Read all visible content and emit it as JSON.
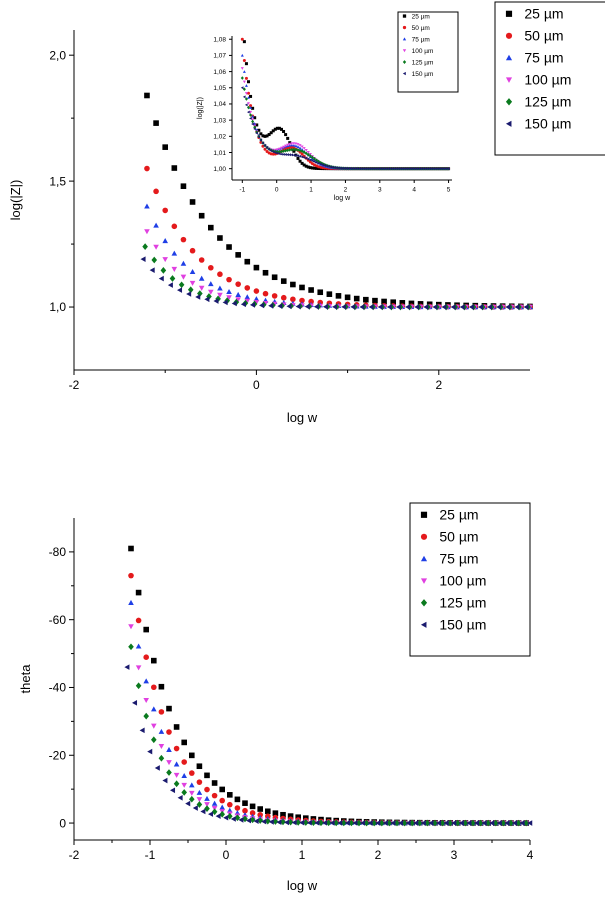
{
  "chart_data": [
    {
      "type": "scatter",
      "id": "top-main",
      "title": "",
      "xlabel": "log w",
      "ylabel": "log(|Z|)",
      "xlim": [
        -2,
        3
      ],
      "ylim": [
        0.75,
        2.1
      ],
      "xticks": [
        {
          "v": -2,
          "label": "-2"
        },
        {
          "v": 0,
          "label": "0"
        },
        {
          "v": 2,
          "label": "2"
        }
      ],
      "yticks": [
        {
          "v": 1.0,
          "label": "1,0"
        },
        {
          "v": 1.5,
          "label": "1,5"
        },
        {
          "v": 2.0,
          "label": "2,0"
        }
      ],
      "legend_placement": "top-right (outside)",
      "grid": false,
      "curve_model": {
        "x_start": -1.2,
        "x_end": 3.0,
        "step": 0.1,
        "y_inf": 1.0
      },
      "series": [
        {
          "name": "25 µm",
          "marker": "square",
          "color": "#000000",
          "start": 1.84,
          "k": 1.4,
          "x_start": -1.2
        },
        {
          "name": "50 µm",
          "marker": "circle",
          "color": "#e41a1c",
          "start": 1.55,
          "k": 1.8,
          "x_start": -1.2
        },
        {
          "name": "75 µm",
          "marker": "triangle-up",
          "color": "#1f3fe6",
          "start": 1.4,
          "k": 2.1,
          "x_start": -1.2
        },
        {
          "name": "100 µm",
          "marker": "triangle-down",
          "color": "#e040e0",
          "start": 1.3,
          "k": 2.3,
          "x_start": -1.2
        },
        {
          "name": "125 µm",
          "marker": "diamond",
          "color": "#0a7a1e",
          "start": 1.24,
          "k": 2.5,
          "x_start": -1.22
        },
        {
          "name": "150 µm",
          "marker": "triangle-left",
          "color": "#1a1a6e",
          "start": 1.19,
          "k": 2.6,
          "x_start": -1.24
        }
      ]
    },
    {
      "type": "scatter",
      "id": "top-inset",
      "title": "",
      "xlabel": "log w",
      "ylabel": "log(|Z|)",
      "xlim": [
        -1.3,
        5.1
      ],
      "ylim": [
        0.993,
        1.082
      ],
      "xticks": [
        {
          "v": -1,
          "label": "-1"
        },
        {
          "v": 0,
          "label": "0"
        },
        {
          "v": 1,
          "label": "1"
        },
        {
          "v": 2,
          "label": "2"
        },
        {
          "v": 3,
          "label": "3"
        },
        {
          "v": 4,
          "label": "4"
        },
        {
          "v": 5,
          "label": "5"
        }
      ],
      "yticks": [
        {
          "v": 1.0,
          "label": "1,00"
        },
        {
          "v": 1.01,
          "label": "1,01"
        },
        {
          "v": 1.02,
          "label": "1,02"
        },
        {
          "v": 1.03,
          "label": "1,03"
        },
        {
          "v": 1.04,
          "label": "1,04"
        },
        {
          "v": 1.05,
          "label": "1,05"
        },
        {
          "v": 1.06,
          "label": "1,06"
        },
        {
          "v": 1.07,
          "label": "1,07"
        },
        {
          "v": 1.08,
          "label": "1,08"
        }
      ],
      "legend_placement": "top-right",
      "grid": false,
      "curve_model": {
        "x_start": -1.0,
        "x_end": 5.0,
        "step": 0.06,
        "y_inf": 1.0
      },
      "series": [
        {
          "name": "25 µm",
          "marker": "square",
          "color": "#000000",
          "start": 1.095,
          "k": 3.2,
          "hump": 0.022,
          "hump_c": 0.1,
          "hump_w": 0.45
        },
        {
          "name": "50 µm",
          "marker": "circle",
          "color": "#e41a1c",
          "start": 1.08,
          "k": 3.0,
          "hump": 0.012,
          "hump_c": 0.45,
          "hump_w": 0.5
        },
        {
          "name": "75 µm",
          "marker": "triangle-up",
          "color": "#1f3fe6",
          "start": 1.07,
          "k": 2.6,
          "hump": 0.013,
          "hump_c": 0.5,
          "hump_w": 0.6
        },
        {
          "name": "100 µm",
          "marker": "triangle-down",
          "color": "#e040e0",
          "start": 1.062,
          "k": 2.4,
          "hump": 0.014,
          "hump_c": 0.55,
          "hump_w": 0.6
        },
        {
          "name": "125 µm",
          "marker": "diamond",
          "color": "#0a7a1e",
          "start": 1.056,
          "k": 2.2,
          "hump": 0.01,
          "hump_c": 0.6,
          "hump_w": 0.65
        },
        {
          "name": "150 µm",
          "marker": "triangle-left",
          "color": "#1a1a6e",
          "start": 1.05,
          "k": 2.0,
          "hump": 0.006,
          "hump_c": 0.6,
          "hump_w": 0.7
        }
      ]
    },
    {
      "type": "scatter",
      "id": "bottom",
      "title": "",
      "xlabel": "log w",
      "ylabel": "theta",
      "xlim": [
        -2,
        4
      ],
      "ylim": [
        5,
        -90
      ],
      "xticks": [
        {
          "v": -2,
          "label": "-2"
        },
        {
          "v": -1,
          "label": "-1"
        },
        {
          "v": 0,
          "label": "0"
        },
        {
          "v": 1,
          "label": "1"
        },
        {
          "v": 2,
          "label": "2"
        },
        {
          "v": 3,
          "label": "3"
        },
        {
          "v": 4,
          "label": "4"
        }
      ],
      "yticks": [
        {
          "v": 0,
          "label": "0"
        },
        {
          "v": -20,
          "label": "-20"
        },
        {
          "v": -40,
          "label": "-40"
        },
        {
          "v": -60,
          "label": "-60"
        },
        {
          "v": -80,
          "label": "-80"
        }
      ],
      "legend_placement": "top-right",
      "grid": false,
      "curve_model": {
        "x_start": -1.25,
        "x_end": 4.0,
        "step": 0.1,
        "y_inf": 0.0
      },
      "series": [
        {
          "name": "25 µm",
          "marker": "square",
          "color": "#000000",
          "start": -81,
          "k": 1.75,
          "x_start": -1.25
        },
        {
          "name": "50 µm",
          "marker": "circle",
          "color": "#e41a1c",
          "start": -73,
          "k": 2.0,
          "x_start": -1.25
        },
        {
          "name": "75 µm",
          "marker": "triangle-up",
          "color": "#1f3fe6",
          "start": -65,
          "k": 2.2,
          "x_start": -1.25
        },
        {
          "name": "100 µm",
          "marker": "triangle-down",
          "color": "#e040e0",
          "start": -58,
          "k": 2.35,
          "x_start": -1.25
        },
        {
          "name": "125 µm",
          "marker": "diamond",
          "color": "#0a7a1e",
          "start": -52,
          "k": 2.5,
          "x_start": -1.25
        },
        {
          "name": "150 µm",
          "marker": "triangle-left",
          "color": "#1a1a6e",
          "start": -46,
          "k": 2.6,
          "x_start": -1.3
        }
      ]
    }
  ]
}
